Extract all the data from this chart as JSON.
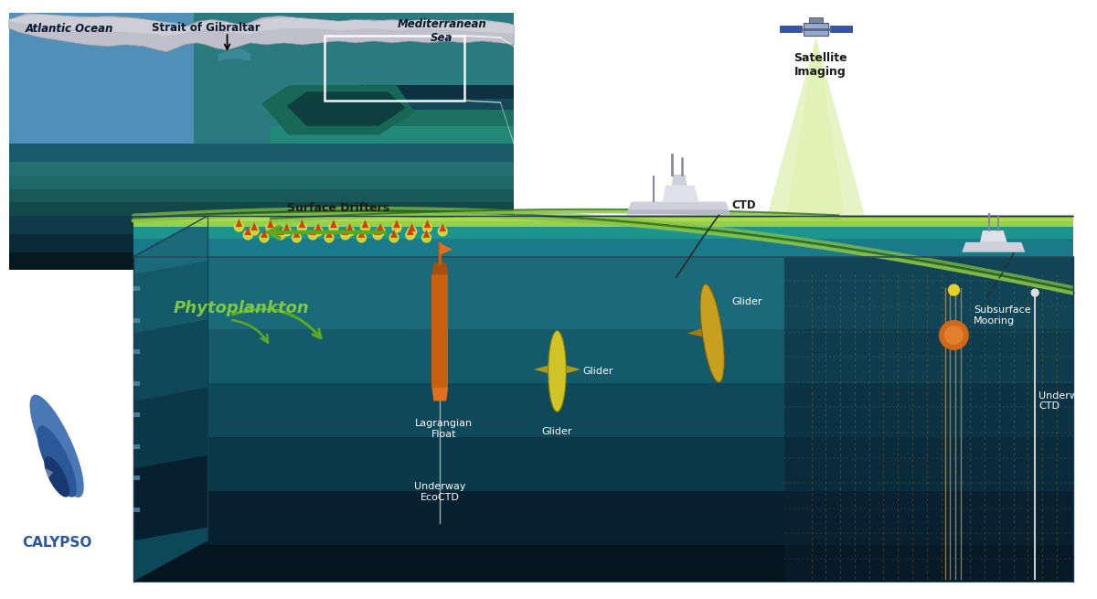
{
  "bg_color": "#ffffff",
  "labels": {
    "atlantic_ocean": "Atlantic Ocean",
    "strait_of_gibraltar": "Strait of Gibraltar",
    "mediterranean_sea": "Mediterranean\nSea",
    "satellite_imaging": "Satellite\nImaging",
    "surface_drifters": "Surface Drifters",
    "phytoplankton": "Phytoplankton",
    "lagrangian_float": "Lagrangian\nFloat",
    "underway_ecocdt": "Underway\nEcoCTD",
    "glider1": "Glider",
    "glider2": "Glider",
    "subsurface_mooring": "Subsurface\nMooring",
    "underway_ctd": "Underway\nCTD",
    "ctd": "CTD",
    "calypso": "CALYPSO"
  },
  "colors": {
    "ocean_blue_light": "#5ba4c8",
    "ocean_teal": "#2a8a80",
    "ocean_deep": "#0d2b3e",
    "seafloor_dark": "#181828",
    "land_gray": "#c0c0cc",
    "land_highlight": "#d8d8e0",
    "green_bloom": "#8bc34a",
    "green_dark": "#4a7a10",
    "satellite_beam": "#c8e680",
    "orange_float": "#d06818",
    "orange_drifter": "#d04010",
    "yellow_glider": "#d4c020",
    "mooring_line": "#c8a060",
    "text_dark": "#1a1a1a",
    "text_white": "#ffffff",
    "text_green": "#7ec840",
    "arrow_green": "#5aaa20",
    "water_layer1": "#1a6a7a",
    "water_layer2": "#155a6a",
    "water_layer3": "#0f4858",
    "water_layer4": "#0a3848",
    "water_layer5": "#061e2e"
  }
}
